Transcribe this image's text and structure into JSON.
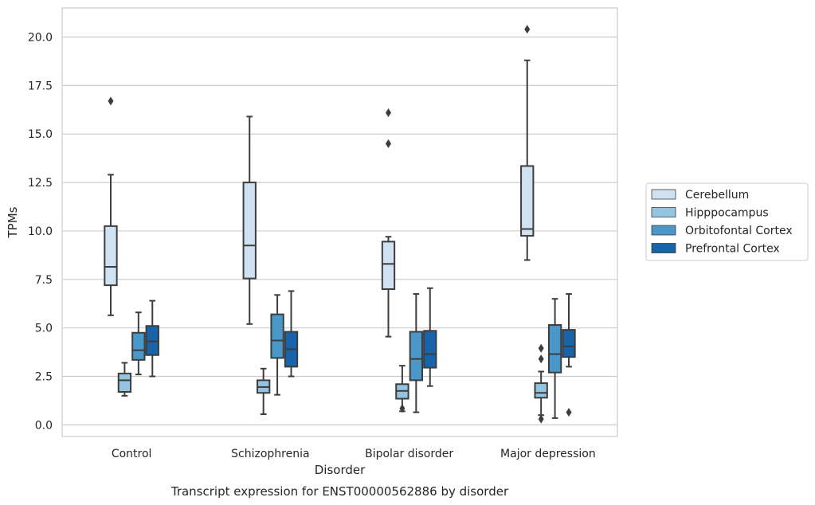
{
  "chart_data": {
    "type": "boxplot",
    "title": "",
    "caption": "Transcript expression for ENST00000562886 by disorder",
    "xlabel": "Disorder",
    "ylabel": "TPMs",
    "ylim": [
      -0.6,
      21.5
    ],
    "yticks": [
      "0.0",
      "2.5",
      "5.0",
      "7.5",
      "10.0",
      "12.5",
      "15.0",
      "17.5",
      "20.0"
    ],
    "ytick_values": [
      0,
      2.5,
      5,
      7.5,
      10,
      12.5,
      15,
      17.5,
      20
    ],
    "categories": [
      "Control",
      "Schizophrenia",
      "Bipolar disorder",
      "Major depression"
    ],
    "grid": "horizontal",
    "legend_placement": "right",
    "series": [
      {
        "name": "Cerebellum",
        "color": "#d0e1f2",
        "boxes": [
          {
            "whislo": 5.65,
            "q1": 7.2,
            "med": 8.15,
            "q3": 10.25,
            "whishi": 12.9,
            "fliers": [
              16.7
            ]
          },
          {
            "whislo": 5.2,
            "q1": 7.55,
            "med": 9.25,
            "q3": 12.5,
            "whishi": 15.9,
            "fliers": []
          },
          {
            "whislo": 4.55,
            "q1": 7.0,
            "med": 8.3,
            "q3": 9.45,
            "whishi": 9.7,
            "fliers": [
              14.5,
              16.1
            ]
          },
          {
            "whislo": 8.5,
            "q1": 9.75,
            "med": 10.1,
            "q3": 13.35,
            "whishi": 18.8,
            "fliers": [
              20.4
            ]
          }
        ]
      },
      {
        "name": "Hipppocampus",
        "color": "#94c4df",
        "boxes": [
          {
            "whislo": 1.5,
            "q1": 1.7,
            "med": 2.3,
            "q3": 2.65,
            "whishi": 3.2,
            "fliers": []
          },
          {
            "whislo": 0.55,
            "q1": 1.65,
            "med": 1.95,
            "q3": 2.3,
            "whishi": 2.9,
            "fliers": []
          },
          {
            "whislo": 0.7,
            "q1": 1.35,
            "med": 1.75,
            "q3": 2.1,
            "whishi": 3.05,
            "fliers": [
              0.85
            ]
          },
          {
            "whislo": 0.5,
            "q1": 1.4,
            "med": 1.65,
            "q3": 2.15,
            "whishi": 2.75,
            "fliers": [
              3.4,
              3.95,
              0.3
            ]
          }
        ]
      },
      {
        "name": "Orbitofontal Cortex",
        "color": "#4a98c9",
        "boxes": [
          {
            "whislo": 2.6,
            "q1": 3.35,
            "med": 3.85,
            "q3": 4.75,
            "whishi": 5.8,
            "fliers": []
          },
          {
            "whislo": 1.55,
            "q1": 3.45,
            "med": 4.35,
            "q3": 5.7,
            "whishi": 6.7,
            "fliers": []
          },
          {
            "whislo": 0.65,
            "q1": 2.3,
            "med": 3.4,
            "q3": 4.8,
            "whishi": 6.75,
            "fliers": []
          },
          {
            "whislo": 0.35,
            "q1": 2.7,
            "med": 3.65,
            "q3": 5.15,
            "whishi": 6.5,
            "fliers": []
          }
        ]
      },
      {
        "name": "Prefrontal Cortex",
        "color": "#1764ab",
        "boxes": [
          {
            "whislo": 2.5,
            "q1": 3.6,
            "med": 4.3,
            "q3": 5.1,
            "whishi": 6.4,
            "fliers": []
          },
          {
            "whislo": 2.5,
            "q1": 3.0,
            "med": 3.9,
            "q3": 4.8,
            "whishi": 6.9,
            "fliers": []
          },
          {
            "whislo": 2.0,
            "q1": 2.95,
            "med": 3.65,
            "q3": 4.85,
            "whishi": 7.05,
            "fliers": []
          },
          {
            "whislo": 3.0,
            "q1": 3.5,
            "med": 4.05,
            "q3": 4.9,
            "whishi": 6.75,
            "fliers": [
              0.65
            ]
          }
        ]
      }
    ]
  }
}
